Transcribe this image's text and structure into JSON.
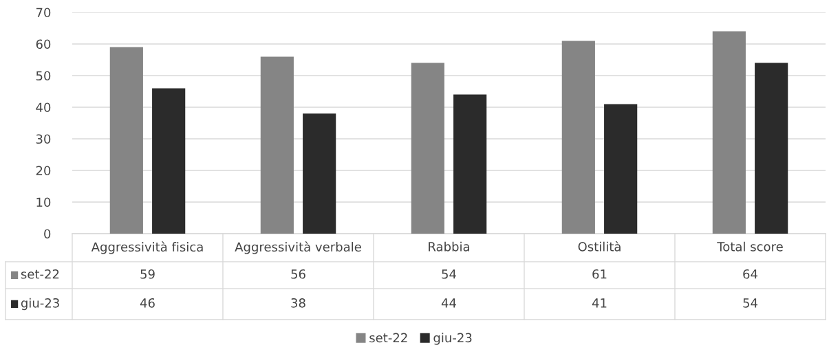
{
  "chart_data": {
    "type": "bar",
    "categories": [
      "Aggressività fisica",
      "Aggressività verbale",
      "Rabbia",
      "Ostilità",
      "Total score"
    ],
    "series": [
      {
        "name": "set-22",
        "color": "#858585",
        "values": [
          59,
          56,
          54,
          61,
          64
        ]
      },
      {
        "name": "giu-23",
        "color": "#2b2b2b",
        "values": [
          46,
          38,
          44,
          41,
          54
        ]
      }
    ],
    "ylim": [
      0,
      70
    ],
    "yticks": [
      0,
      10,
      20,
      30,
      40,
      50,
      60,
      70
    ],
    "grid": "y",
    "legend": "bottom",
    "data_labels": true
  }
}
